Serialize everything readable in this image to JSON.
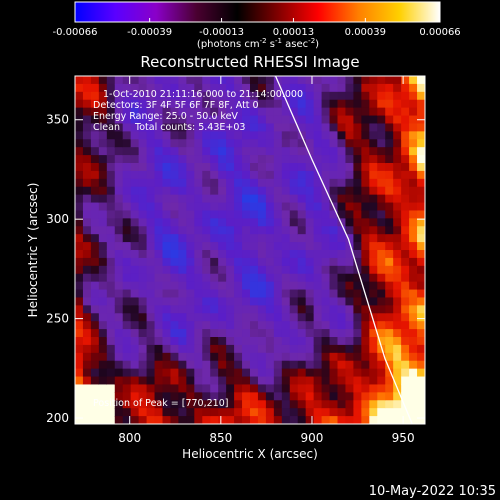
{
  "colorbar": {
    "tick_labels": [
      "-0.00066",
      "-0.00039",
      "-0.00013",
      "0.00013",
      "0.00039",
      "0.00066"
    ],
    "tick_values": [
      -0.00066,
      -0.00039,
      -0.00013,
      0.00013,
      0.00039,
      0.00066
    ],
    "range": [
      -0.00066,
      0.00066
    ],
    "units_prefix": "(photons cm",
    "units_exp1": "-2",
    "units_mid": " s",
    "units_exp2": "-1",
    "units_suffix": " asec",
    "units_exp3": "-2",
    "units_close": ")",
    "colors": [
      "#0000ff",
      "#5a00ff",
      "#8a00c8",
      "#4a0030",
      "#000000",
      "#800000",
      "#ff0000",
      "#ff8000",
      "#ffd000",
      "#ffffff"
    ]
  },
  "chart_data": {
    "type": "heatmap",
    "title": "Reconstructed RHESSI Image",
    "xlabel": "Heliocentric X (arcsec)",
    "ylabel": "Heliocentric Y (arcsec)",
    "xlim": [
      770,
      962
    ],
    "ylim": [
      197,
      372
    ],
    "x_ticks": [
      800,
      850,
      900,
      950
    ],
    "y_ticks": [
      200,
      250,
      300,
      350
    ],
    "x_tick_labels": [
      "800",
      "850",
      "900",
      "950"
    ],
    "y_tick_labels": [
      "200",
      "250",
      "300",
      "350"
    ],
    "annotations": [
      "1-Oct-2010 21:11:16.000 to 21:14:00.000",
      "Detectors: 3F 4F 5F 6F 7F 8F, Att 0",
      "Energy Range: 25.0 - 50.0 keV",
      "Clean     Total counts: 5.43E+03"
    ],
    "peak_label": "Position of Peak = [770,210]",
    "peak": [
      770,
      210
    ],
    "limb_curve": [
      [
        880,
        372
      ],
      [
        900,
        330
      ],
      [
        920,
        290
      ],
      [
        940,
        230
      ],
      [
        955,
        197
      ]
    ],
    "value_range": [
      -0.00066,
      0.00066
    ],
    "grid": false
  },
  "footer": {
    "timestamp": "10-May-2022 10:35"
  }
}
